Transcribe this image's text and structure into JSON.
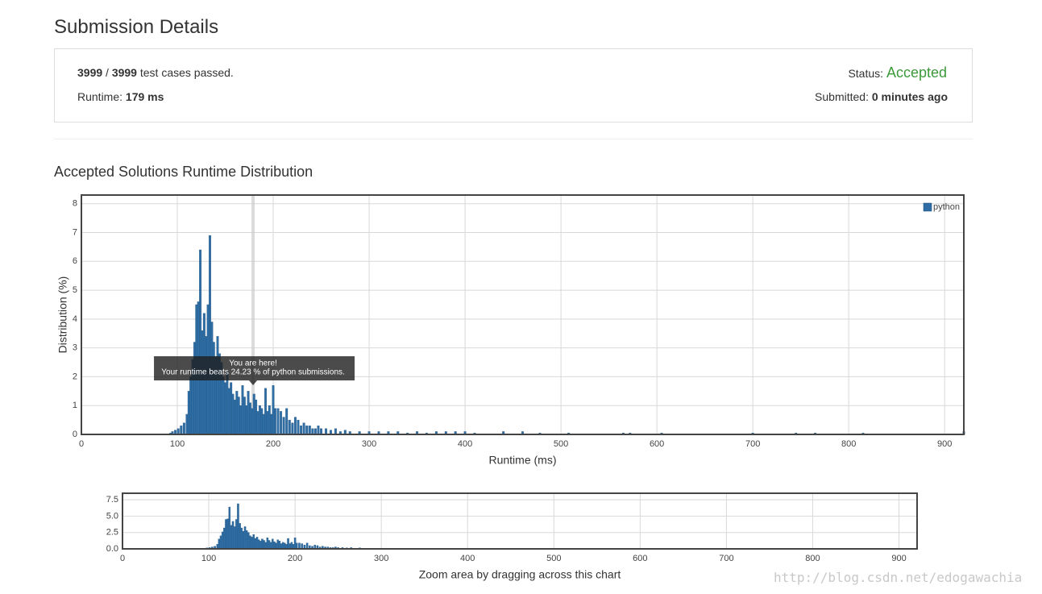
{
  "header": {
    "title": "Submission Details"
  },
  "summary": {
    "passed": "3999",
    "separator": "/",
    "total": "3999",
    "passed_text": "test cases passed.",
    "runtime_label": "Runtime:",
    "runtime_value": "179 ms",
    "status_label": "Status:",
    "status_value": "Accepted",
    "submitted_label": "Submitted:",
    "submitted_value": "0 minutes ago"
  },
  "section_title": "Accepted Solutions Runtime Distribution",
  "chart_data": [
    {
      "type": "bar",
      "x": [
        93,
        95,
        98,
        101,
        104,
        107,
        110,
        112,
        114,
        116,
        118,
        120,
        122,
        124,
        126,
        128,
        130,
        132,
        134,
        136,
        138,
        140,
        142,
        144,
        146,
        148,
        150,
        152,
        154,
        156,
        158,
        160,
        162,
        164,
        166,
        168,
        170,
        172,
        174,
        176,
        178,
        180,
        182,
        184,
        186,
        188,
        190,
        192,
        194,
        196,
        198,
        200,
        202,
        205,
        208,
        211,
        214,
        217,
        220,
        223,
        226,
        229,
        232,
        235,
        238,
        241,
        244,
        247,
        250,
        255,
        260,
        265,
        270,
        275,
        280,
        290,
        300,
        310,
        320,
        330,
        340,
        350,
        360,
        370,
        380,
        390,
        400,
        410,
        440,
        460,
        478,
        508,
        565,
        572,
        605,
        700,
        745,
        765,
        815,
        920
      ],
      "series": [
        {
          "name": "python",
          "color": "#2f6ea5",
          "values": [
            0.05,
            0.1,
            0.15,
            0.2,
            0.3,
            0.4,
            0.7,
            1.5,
            2.0,
            2.6,
            3.2,
            4.5,
            4.6,
            6.4,
            3.6,
            4.2,
            3.4,
            4.5,
            6.9,
            3.9,
            3.2,
            2.7,
            3.4,
            2.8,
            2.5,
            2.0,
            1.8,
            2.2,
            1.6,
            1.8,
            1.4,
            1.2,
            1.5,
            1.3,
            1.0,
            1.7,
            1.3,
            1.0,
            1.5,
            1.1,
            0.9,
            1.4,
            1.2,
            0.8,
            1.0,
            0.9,
            0.7,
            1.6,
            0.8,
            1.0,
            0.7,
            1.7,
            0.9,
            0.9,
            0.8,
            0.6,
            0.9,
            0.5,
            0.4,
            0.6,
            0.5,
            0.3,
            0.4,
            0.3,
            0.3,
            0.2,
            0.2,
            0.3,
            0.2,
            0.2,
            0.15,
            0.2,
            0.1,
            0.15,
            0.1,
            0.1,
            0.1,
            0.1,
            0.1,
            0.1,
            0.05,
            0.1,
            0.05,
            0.1,
            0.1,
            0.1,
            0.1,
            0.05,
            0.1,
            0.1,
            0.05,
            0.05,
            0.05,
            0.05,
            0.05,
            0.05,
            0.05,
            0.05,
            0.05,
            0.1
          ]
        }
      ],
      "xlim": [
        0,
        920
      ],
      "ylim": [
        0,
        8.3
      ],
      "xticks": [
        0,
        100,
        200,
        300,
        400,
        500,
        600,
        700,
        800,
        900
      ],
      "yticks": [
        0,
        1,
        2,
        3,
        4,
        5,
        6,
        7,
        8
      ],
      "xlabel": "Runtime (ms)",
      "ylabel": "Distribution (%)",
      "grid": true,
      "legend": "top-right",
      "highlight_x": 179,
      "tooltip": {
        "title": "You are here!",
        "text": "Your runtime beats 24.23 % of python submissions."
      }
    },
    {
      "type": "bar",
      "xlim": [
        0,
        921
      ],
      "ylim": [
        0,
        8.5
      ],
      "xticks": [
        0,
        100,
        200,
        300,
        400,
        500,
        600,
        700,
        800,
        900
      ],
      "yticks": [
        {
          "value": 0,
          "label": "0.0"
        },
        {
          "value": 2.5,
          "label": "2.5"
        },
        {
          "value": 5,
          "label": "5.0"
        },
        {
          "value": 7.5,
          "label": "7.5"
        }
      ],
      "xlabel": "Zoom area by dragging across this chart",
      "grid": true
    }
  ],
  "watermark": "http://blog.csdn.net/edogawachia"
}
